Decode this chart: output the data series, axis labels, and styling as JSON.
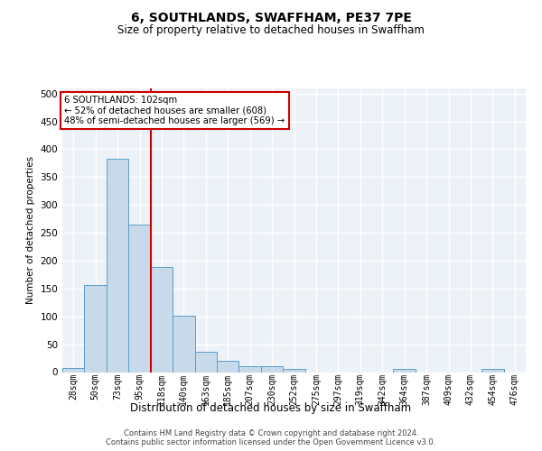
{
  "title": "6, SOUTHLANDS, SWAFFHAM, PE37 7PE",
  "subtitle": "Size of property relative to detached houses in Swaffham",
  "xlabel": "Distribution of detached houses by size in Swaffham",
  "ylabel": "Number of detached properties",
  "footer_line1": "Contains HM Land Registry data © Crown copyright and database right 2024.",
  "footer_line2": "Contains public sector information licensed under the Open Government Licence v3.0.",
  "bar_labels": [
    "28sqm",
    "50sqm",
    "73sqm",
    "95sqm",
    "118sqm",
    "140sqm",
    "163sqm",
    "185sqm",
    "207sqm",
    "230sqm",
    "252sqm",
    "275sqm",
    "297sqm",
    "319sqm",
    "342sqm",
    "364sqm",
    "387sqm",
    "409sqm",
    "432sqm",
    "454sqm",
    "476sqm"
  ],
  "bar_values": [
    7,
    157,
    383,
    265,
    188,
    101,
    36,
    20,
    11,
    10,
    5,
    0,
    0,
    0,
    0,
    5,
    0,
    0,
    0,
    5,
    0
  ],
  "bar_color": "#c8d9ea",
  "bar_edge_color": "#5b9ec9",
  "ylim": [
    0,
    510
  ],
  "yticks": [
    0,
    50,
    100,
    150,
    200,
    250,
    300,
    350,
    400,
    450,
    500
  ],
  "vline_x": 3.5,
  "vline_color": "#cc0000",
  "annotation_text": "6 SOUTHLANDS: 102sqm\n← 52% of detached houses are smaller (608)\n48% of semi-detached houses are larger (569) →",
  "annotation_box_color": "#cc0000",
  "background_color": "#edf2f8",
  "grid_color": "#ffffff",
  "title_fontsize": 10,
  "subtitle_fontsize": 8.5
}
